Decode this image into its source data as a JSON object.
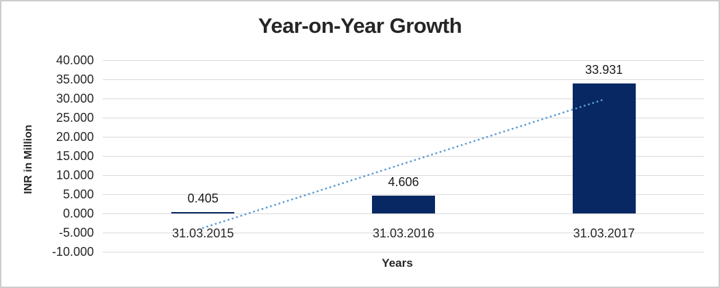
{
  "chart_data": {
    "type": "bar",
    "title": "Year-on-Year Growth",
    "xlabel": "Years",
    "ylabel": "INR in Million",
    "categories": [
      "31.03.2015",
      "31.03.2016",
      "31.03.2017"
    ],
    "values": [
      0.405,
      4.606,
      33.931
    ],
    "value_labels": [
      "0.405",
      "4.606",
      "33.931"
    ],
    "ylim": [
      -10,
      40
    ],
    "ytick_step": 5,
    "ytick_labels": [
      "40.000",
      "35.000",
      "30.000",
      "25.000",
      "20.000",
      "15.000",
      "10.000",
      "5.000",
      "0.000",
      "-5.000",
      "-10.000"
    ],
    "ytick_values": [
      40,
      35,
      30,
      25,
      20,
      15,
      10,
      5,
      0,
      -5,
      -10
    ],
    "grid": true,
    "legend": false,
    "trendline": {
      "type": "linear",
      "style": "round-dot",
      "endpoints_values": [
        -3.782,
        29.744
      ]
    },
    "colors": {
      "bar": "#082863",
      "trendline": "#5B9BD5",
      "gridline": "#D9D9D9",
      "text": "#262626",
      "frame_border": "#CCCCCC",
      "background": "#FFFFFF"
    }
  }
}
